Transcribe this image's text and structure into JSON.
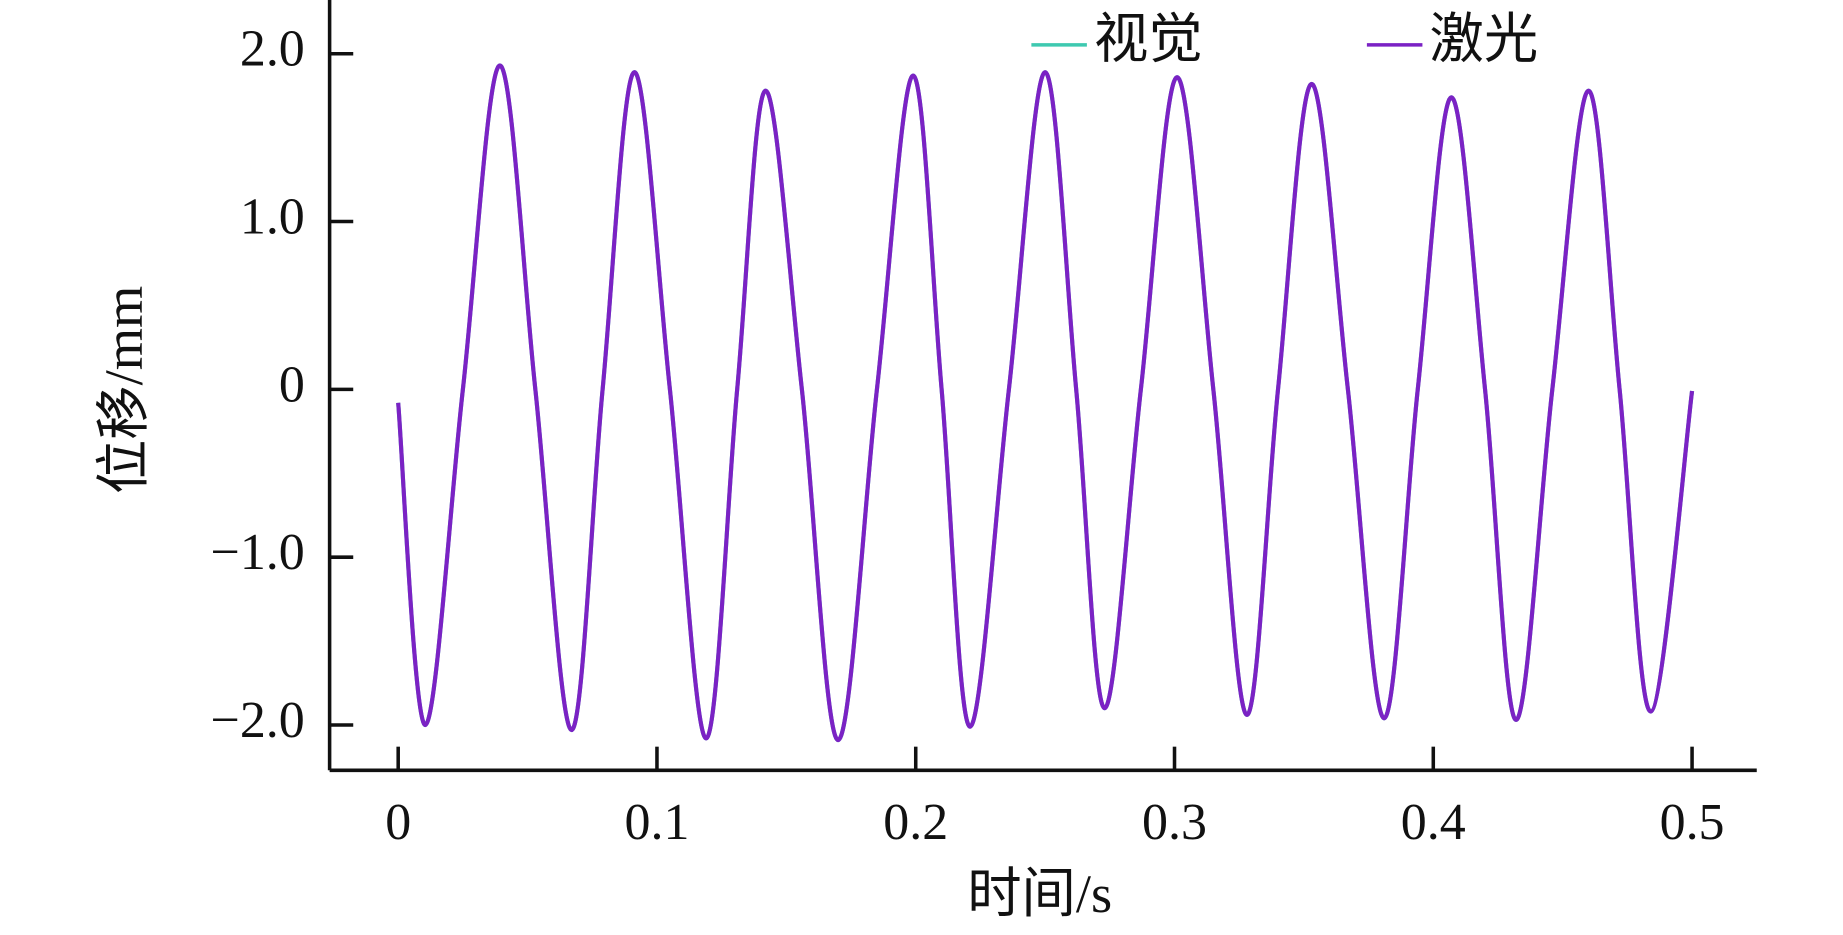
{
  "chart_data": {
    "type": "line",
    "xlabel": "时间/s",
    "ylabel": "位移/mm",
    "x": [
      0,
      0.0105,
      0.025,
      0.0393,
      0.053,
      0.067,
      0.079,
      0.0913,
      0.105,
      0.119,
      0.131,
      0.142,
      0.156,
      0.17,
      0.185,
      0.199,
      0.21,
      0.221,
      0.236,
      0.25,
      0.262,
      0.273,
      0.287,
      0.301,
      0.315,
      0.328,
      0.34,
      0.353,
      0.367,
      0.381,
      0.394,
      0.407,
      0.42,
      0.432,
      0.446,
      0.46,
      0.472,
      0.484,
      0.5
    ],
    "series": [
      {
        "name": "视觉",
        "color": "#3ec9b0",
        "values": [
          -0.08,
          -2.0,
          0,
          1.93,
          0,
          -2.03,
          0,
          1.89,
          0,
          -2.08,
          0,
          1.78,
          0,
          -2.09,
          0,
          1.87,
          0,
          -2.01,
          0,
          1.89,
          0,
          -1.9,
          0,
          1.86,
          0,
          -1.94,
          0,
          1.82,
          0,
          -1.96,
          0,
          1.74,
          0,
          -1.97,
          0,
          1.78,
          0,
          -1.92,
          -0.01
        ]
      },
      {
        "name": "激光",
        "color": "#7b22c4",
        "values": [
          -0.08,
          -2.0,
          0,
          1.93,
          0,
          -2.03,
          0,
          1.89,
          0,
          -2.08,
          0,
          1.78,
          0,
          -2.09,
          0,
          1.87,
          0,
          -2.01,
          0,
          1.89,
          0,
          -1.9,
          0,
          1.86,
          0,
          -1.94,
          0,
          1.82,
          0,
          -1.96,
          0,
          1.74,
          0,
          -1.97,
          0,
          1.78,
          0,
          -1.92,
          -0.01
        ]
      }
    ],
    "xlim": [
      -0.0265,
      0.525
    ],
    "ylim": [
      -2.27,
      2.32
    ],
    "xticks": [
      0,
      0.1,
      0.2,
      0.3,
      0.4,
      0.5
    ],
    "yticks": [
      {
        "value": -2,
        "label": "−2.0"
      },
      {
        "value": -1,
        "label": "−1.0"
      },
      0,
      {
        "value": 1,
        "label": "1.0"
      },
      {
        "value": 2,
        "label": "2.0"
      }
    ],
    "legend": "top"
  }
}
